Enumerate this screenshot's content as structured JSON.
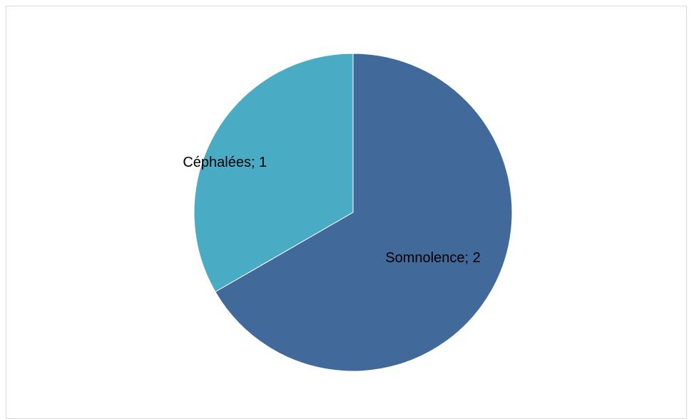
{
  "chart_data": {
    "type": "pie",
    "categories": [
      "Somnolence",
      "Céphalées"
    ],
    "values": [
      2,
      1
    ],
    "data_labels": [
      "Somnolence; 2",
      "Céphalées; 1"
    ],
    "colors": [
      "#41699a",
      "#4aabc5"
    ],
    "start_angle_deg": 0,
    "direction": "clockwise",
    "title": "",
    "legend": "none"
  }
}
